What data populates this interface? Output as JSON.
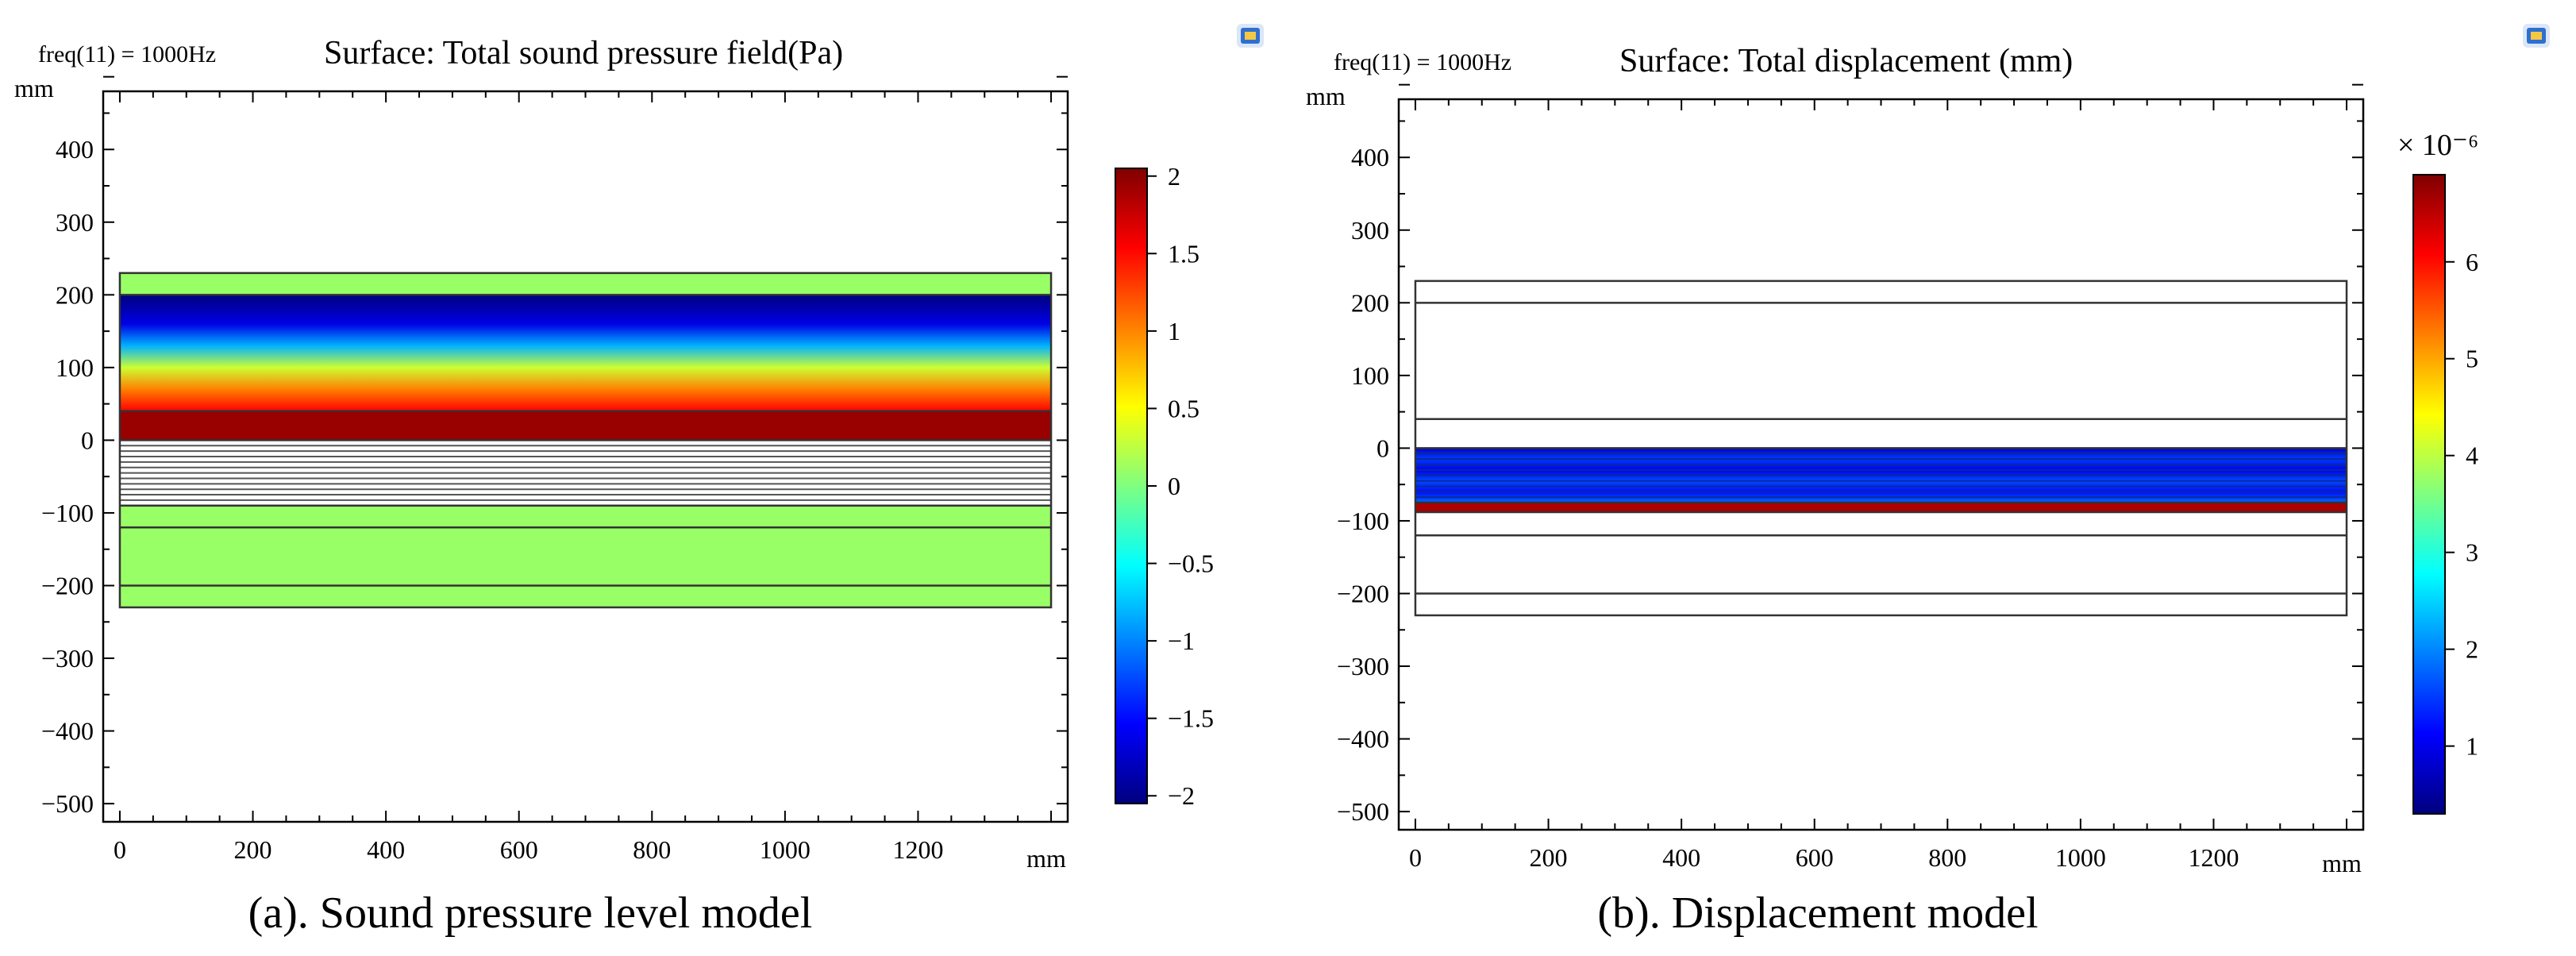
{
  "chart_data": [
    {
      "type": "heatmap",
      "id": "a",
      "freq_label": "freq(11) = 1000Hz",
      "title": "Surface: Total sound pressure field(Pa)",
      "caption": "(a). Sound pressure level model",
      "unit_y": "mm",
      "unit_x": "mm",
      "xlim": [
        -25,
        1425
      ],
      "ylim": [
        -525,
        480
      ],
      "xticks": [
        "0",
        "200",
        "400",
        "600",
        "800",
        "1000",
        "1200"
      ],
      "yticks": [
        "400",
        "300",
        "200",
        "100",
        "0",
        "−100",
        "−200",
        "−300",
        "−400",
        "−500"
      ],
      "domain_x": [
        0,
        1400
      ],
      "domain_y": [
        -230,
        230
      ],
      "colorbar": {
        "min": -2,
        "max": 2,
        "exponent": "",
        "ticks": [
          "2",
          "1.5",
          "1",
          "0.5",
          "0",
          "−0.5",
          "−1",
          "−1.5",
          "−2"
        ],
        "range": [
          -2.05,
          2.05
        ]
      },
      "bands": [
        {
          "y0": 200,
          "y1": 230,
          "value": 0.1
        },
        {
          "y0": 40,
          "y1": 200,
          "value": 0,
          "gradient": [
            [
              200,
              -2.0
            ],
            [
              160,
              -1.6
            ],
            [
              130,
              -0.8
            ],
            [
              100,
              0.3
            ],
            [
              70,
              1.0
            ],
            [
              40,
              1.5
            ]
          ]
        },
        {
          "y0": 0,
          "y1": 40,
          "value": 1.9
        },
        {
          "y0": -90,
          "y1": 0,
          "value": 0,
          "striped": true,
          "lines": 12
        },
        {
          "y0": -230,
          "y1": -90,
          "value": 0.1
        }
      ],
      "boundaries": [
        200,
        40,
        0,
        -90,
        -120,
        -200
      ]
    },
    {
      "type": "heatmap",
      "id": "b",
      "freq_label": "freq(11) = 1000Hz",
      "title": "Surface: Total displacement (mm)",
      "caption": "(b). Displacement model",
      "unit_y": "mm",
      "unit_x": "mm",
      "xlim": [
        -25,
        1425
      ],
      "ylim": [
        -525,
        480
      ],
      "xticks": [
        "0",
        "200",
        "400",
        "600",
        "800",
        "1000",
        "1200"
      ],
      "yticks": [
        "400",
        "300",
        "200",
        "100",
        "0",
        "−100",
        "−200",
        "−300",
        "−400",
        "−500"
      ],
      "domain_x": [
        0,
        1400
      ],
      "domain_y": [
        -230,
        230
      ],
      "colorbar": {
        "min": 0.3,
        "max": 6.9,
        "exponent": "× 10⁻⁶",
        "ticks": [
          "6",
          "5",
          "4",
          "3",
          "2",
          "1"
        ],
        "range": [
          0.3,
          6.9
        ]
      },
      "bands": [
        {
          "y0": 200,
          "y1": 230,
          "value": null
        },
        {
          "y0": 40,
          "y1": 200,
          "value": null
        },
        {
          "y0": 0,
          "y1": 40,
          "value": null
        },
        {
          "y0": -75,
          "y1": 0,
          "value": 0,
          "gradient": [
            [
              0,
              0.8
            ],
            [
              -15,
              1.5
            ],
            [
              -30,
              1.0
            ],
            [
              -45,
              1.6
            ],
            [
              -60,
              1.2
            ],
            [
              -75,
              1.8
            ]
          ],
          "layered": true
        },
        {
          "y0": -88,
          "y1": -75,
          "value": 6.6
        },
        {
          "y0": -230,
          "y1": -88,
          "value": null
        }
      ],
      "boundaries": [
        200,
        40,
        0,
        -75,
        -88,
        -120,
        -200
      ]
    }
  ],
  "ui": {
    "icon_name": "comsol-logo-icon"
  }
}
